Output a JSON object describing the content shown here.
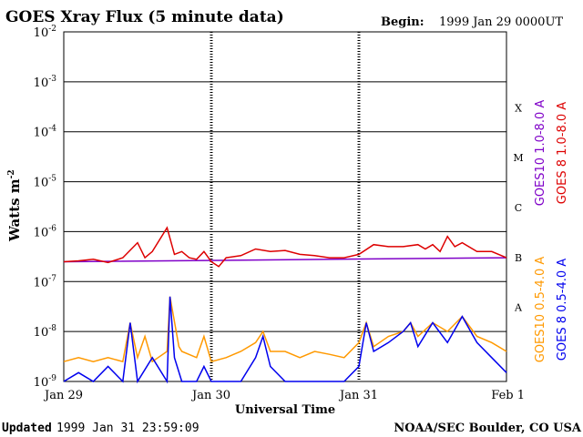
{
  "chart_data": {
    "type": "line",
    "title": "GOES Xray Flux (5 minute data)",
    "begin_label": "Begin:",
    "begin_value": "1999 Jan 29 0000UT",
    "ylabel": "Watts m",
    "ylabel_exponent": "-2",
    "xlabel": "Universal Time",
    "footer_left_label": "Updated",
    "footer_left_value": "1999 Jan 31 23:59:09",
    "footer_right": "NOAA/SEC Boulder, CO USA",
    "y_scale": "log",
    "ylim": [
      1e-09,
      0.01
    ],
    "y_ticks": [
      {
        "value": -2,
        "base": "10",
        "exp": "-2"
      },
      {
        "value": -3,
        "base": "10",
        "exp": "-3"
      },
      {
        "value": -4,
        "base": "10",
        "exp": "-4"
      },
      {
        "value": -5,
        "base": "10",
        "exp": "-5"
      },
      {
        "value": -6,
        "base": "10",
        "exp": "-6"
      },
      {
        "value": -7,
        "base": "10",
        "exp": "-7"
      },
      {
        "value": -8,
        "base": "10",
        "exp": "-8"
      },
      {
        "value": -9,
        "base": "10",
        "exp": "-9"
      }
    ],
    "xlim": [
      "1999-01-29",
      "1999-02-01"
    ],
    "x_ticks": [
      {
        "value": 0,
        "label": "Jan 29"
      },
      {
        "value": 1,
        "label": "Jan 30"
      },
      {
        "value": 2,
        "label": "Jan 31"
      },
      {
        "value": 3,
        "label": "Feb 1"
      }
    ],
    "flare_classes": [
      {
        "label": "X",
        "value": -3.5
      },
      {
        "label": "M",
        "value": -4.5
      },
      {
        "label": "C",
        "value": -5.5
      },
      {
        "label": "B",
        "value": -6.5
      },
      {
        "label": "A",
        "value": -7.5
      }
    ],
    "series": [
      {
        "name": "GOES10 1.0-8.0 A",
        "color": "#7f00c8",
        "x": [
          0,
          3
        ],
        "values": [
          2.5e-07,
          3e-07
        ]
      },
      {
        "name": "GOES 8  1.0-8.0 A",
        "color": "#dd0000",
        "x": [
          0,
          0.1,
          0.2,
          0.3,
          0.4,
          0.5,
          0.55,
          0.6,
          0.7,
          0.75,
          0.8,
          0.85,
          0.9,
          0.95,
          1.0,
          1.05,
          1.1,
          1.2,
          1.3,
          1.4,
          1.5,
          1.6,
          1.7,
          1.8,
          1.9,
          2.0,
          2.1,
          2.2,
          2.3,
          2.4,
          2.45,
          2.5,
          2.55,
          2.6,
          2.65,
          2.7,
          2.8,
          2.9,
          3.0
        ],
        "values": [
          2.5e-07,
          2.6e-07,
          2.8e-07,
          2.4e-07,
          3e-07,
          6e-07,
          3e-07,
          4e-07,
          1.2e-06,
          3.5e-07,
          4e-07,
          3e-07,
          2.8e-07,
          4e-07,
          2.5e-07,
          2e-07,
          3e-07,
          3.3e-07,
          4.5e-07,
          4e-07,
          4.2e-07,
          3.5e-07,
          3.3e-07,
          3e-07,
          3e-07,
          3.5e-07,
          5.5e-07,
          5e-07,
          5e-07,
          5.5e-07,
          4.5e-07,
          5.5e-07,
          4e-07,
          8e-07,
          5e-07,
          6e-07,
          4e-07,
          4e-07,
          3e-07
        ]
      },
      {
        "name": "GOES10 0.5-4.0 A",
        "color": "#ff9900",
        "x": [
          0,
          0.1,
          0.2,
          0.3,
          0.4,
          0.45,
          0.5,
          0.55,
          0.6,
          0.7,
          0.72,
          0.78,
          0.8,
          0.9,
          0.95,
          1.0,
          1.1,
          1.2,
          1.3,
          1.35,
          1.4,
          1.5,
          1.6,
          1.7,
          1.8,
          1.9,
          2.0,
          2.05,
          2.1,
          2.2,
          2.3,
          2.35,
          2.4,
          2.5,
          2.6,
          2.7,
          2.8,
          2.9,
          3.0
        ],
        "values": [
          2.5e-09,
          3e-09,
          2.5e-09,
          3e-09,
          2.5e-09,
          1.5e-08,
          3e-09,
          8e-09,
          2.5e-09,
          4e-09,
          5e-08,
          5e-09,
          4e-09,
          3e-09,
          8e-09,
          2.5e-09,
          3e-09,
          4e-09,
          6e-09,
          1e-08,
          4e-09,
          4e-09,
          3e-09,
          4e-09,
          3.5e-09,
          3e-09,
          6e-09,
          1.5e-08,
          5e-09,
          8e-09,
          1e-08,
          1.5e-08,
          8e-09,
          1.5e-08,
          1e-08,
          2e-08,
          8e-09,
          6e-09,
          4e-09
        ]
      },
      {
        "name": "GOES 8  0.5-4.0 A",
        "color": "#0000ee",
        "x": [
          0,
          0.1,
          0.2,
          0.3,
          0.4,
          0.45,
          0.5,
          0.6,
          0.7,
          0.72,
          0.75,
          0.8,
          0.9,
          0.95,
          1.0,
          1.1,
          1.2,
          1.3,
          1.35,
          1.4,
          1.5,
          1.6,
          1.7,
          1.8,
          1.9,
          2.0,
          2.05,
          2.1,
          2.2,
          2.3,
          2.35,
          2.4,
          2.5,
          2.6,
          2.7,
          2.8,
          2.9,
          3.0
        ],
        "values": [
          1e-09,
          1.5e-09,
          1e-09,
          2e-09,
          1e-09,
          1.5e-08,
          1e-09,
          3e-09,
          1e-09,
          5e-08,
          3e-09,
          1e-09,
          1e-09,
          2e-09,
          1e-09,
          1e-09,
          1e-09,
          3e-09,
          8e-09,
          2e-09,
          1e-09,
          1e-09,
          1e-09,
          1e-09,
          1e-09,
          2e-09,
          1.5e-08,
          4e-09,
          6e-09,
          1e-08,
          1.5e-08,
          5e-09,
          1.5e-08,
          6e-09,
          2e-08,
          6e-09,
          3e-09,
          1.5e-09
        ]
      }
    ]
  }
}
